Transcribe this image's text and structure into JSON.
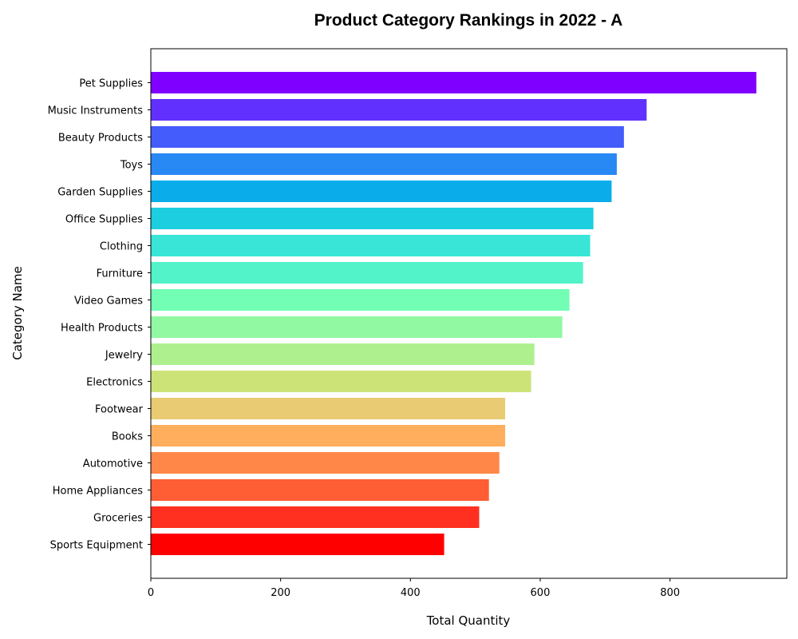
{
  "chart_data": {
    "type": "bar",
    "orientation": "horizontal",
    "title": "Product Category Rankings in 2022 - A",
    "xlabel": "Total Quantity",
    "ylabel": "Category Name",
    "xlim": [
      0,
      980
    ],
    "xticks": [
      0,
      200,
      400,
      600,
      800
    ],
    "grid": false,
    "categories": [
      "Pet Supplies",
      "Music Instruments",
      "Beauty Products",
      "Toys",
      "Garden Supplies",
      "Office Supplies",
      "Clothing",
      "Furniture",
      "Video Games",
      "Health Products",
      "Jewelry",
      "Electronics",
      "Footwear",
      "Books",
      "Automotive",
      "Home Appliances",
      "Groceries",
      "Sports Equipment"
    ],
    "values": [
      933,
      764,
      729,
      718,
      710,
      682,
      677,
      666,
      645,
      634,
      591,
      586,
      546,
      546,
      537,
      521,
      506,
      452
    ],
    "colors": [
      "#8000ff",
      "#6230fe",
      "#445cfb",
      "#2888f4",
      "#0aadea",
      "#1ccee0",
      "#38e5d6",
      "#52f3c9",
      "#72feb5",
      "#90f9a2",
      "#aef08e",
      "#cce477",
      "#e8cb72",
      "#ffae5e",
      "#ff8848",
      "#ff5d34",
      "#ff3020",
      "#ff0000"
    ]
  }
}
